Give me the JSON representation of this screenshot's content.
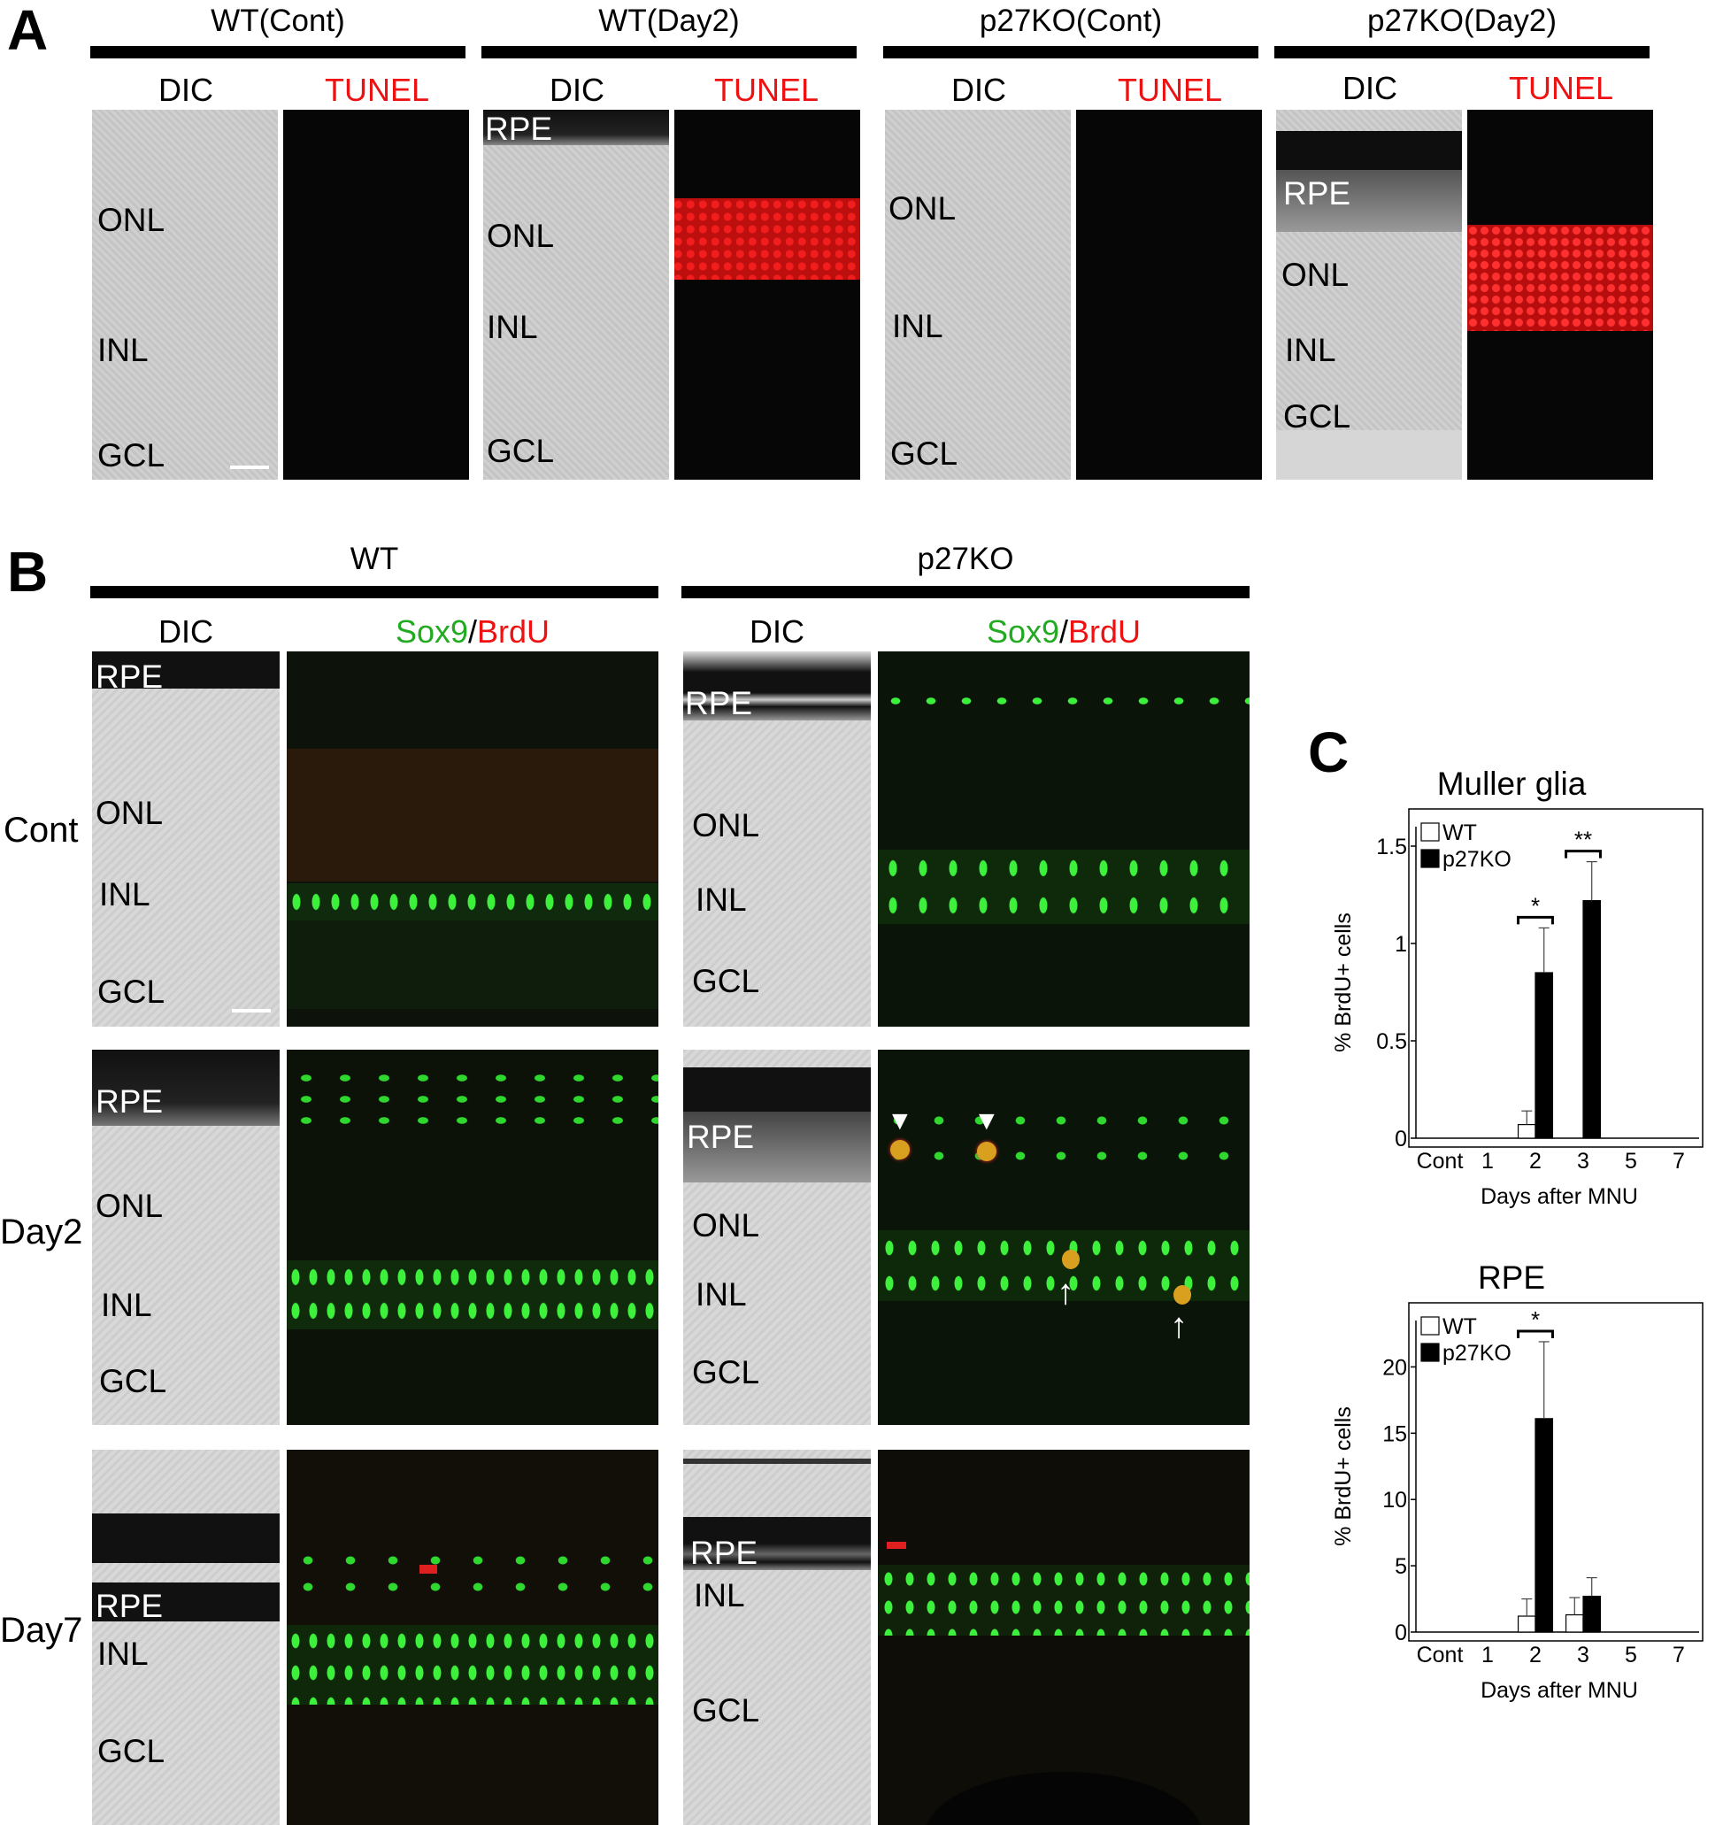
{
  "panel_a": {
    "letter": "A",
    "groups": [
      {
        "title": "WT(Cont)",
        "dic": "DIC",
        "fluor": "TUNEL",
        "layers": [
          "ONL",
          "INL",
          "GCL"
        ]
      },
      {
        "title": "WT(Day2)",
        "dic": "DIC",
        "fluor": "TUNEL",
        "layers": [
          "RPE",
          "ONL",
          "INL",
          "GCL"
        ]
      },
      {
        "title": "p27KO(Cont)",
        "dic": "DIC",
        "fluor": "TUNEL",
        "layers": [
          "ONL",
          "INL",
          "GCL"
        ]
      },
      {
        "title": "p27KO(Day2)",
        "dic": "DIC",
        "fluor": "TUNEL",
        "layers": [
          "RPE",
          "ONL",
          "INL",
          "GCL"
        ]
      }
    ]
  },
  "panel_b": {
    "letter": "B",
    "wt_title": "WT",
    "ko_title": "p27KO",
    "dic": "DIC",
    "sox9": "Sox9",
    "slash": "/",
    "brdu": "BrdU",
    "rows": [
      {
        "label": "Cont",
        "wt_layers": [
          "RPE",
          "ONL",
          "INL",
          "GCL"
        ],
        "ko_layers": [
          "RPE",
          "ONL",
          "INL",
          "GCL"
        ]
      },
      {
        "label": "Day2",
        "wt_layers": [
          "RPE",
          "ONL",
          "INL",
          "GCL"
        ],
        "ko_layers": [
          "RPE",
          "ONL",
          "INL",
          "GCL"
        ]
      },
      {
        "label": "Day7",
        "wt_layers": [
          "RPE",
          "INL",
          "GCL"
        ],
        "ko_layers": [
          "RPE",
          "INL",
          "GCL"
        ]
      }
    ]
  },
  "panel_c": {
    "letter": "C"
  },
  "chart_data": [
    {
      "type": "bar",
      "title": "Muller glia",
      "xlabel": "Days after MNU",
      "ylabel": "% BrdU+ cells",
      "categories": [
        "Cont",
        "1",
        "2",
        "3",
        "5",
        "7"
      ],
      "ylim": [
        0,
        1.6
      ],
      "yticks": [
        "0",
        "0.5",
        "1",
        "1.5"
      ],
      "series": [
        {
          "name": "WT",
          "color": "#ffffff",
          "values": [
            0,
            0,
            0.07,
            0,
            0,
            0
          ],
          "errors": [
            0,
            0,
            0.07,
            0,
            0,
            0
          ]
        },
        {
          "name": "p27KO",
          "color": "#000000",
          "values": [
            0,
            0,
            0.85,
            1.22,
            0,
            0
          ],
          "errors": [
            0,
            0,
            0.23,
            0.2,
            0,
            0
          ]
        }
      ],
      "significance": [
        {
          "category": "2",
          "label": "*"
        },
        {
          "category": "3",
          "label": "**"
        }
      ],
      "legend": "top-left"
    },
    {
      "type": "bar",
      "title": "RPE",
      "xlabel": "Days after MNU",
      "ylabel": "% BrdU+ cells",
      "categories": [
        "Cont",
        "1",
        "2",
        "3",
        "5",
        "7"
      ],
      "ylim": [
        0,
        23.5
      ],
      "yticks": [
        "0",
        "5",
        "10",
        "15",
        "20"
      ],
      "series": [
        {
          "name": "WT",
          "color": "#ffffff",
          "values": [
            0,
            0,
            1.2,
            1.3,
            0,
            0
          ],
          "errors": [
            0,
            0,
            1.3,
            1.3,
            0,
            0
          ]
        },
        {
          "name": "p27KO",
          "color": "#000000",
          "values": [
            0,
            0,
            16.1,
            2.7,
            0,
            0
          ],
          "errors": [
            0,
            0,
            5.8,
            1.4,
            0,
            0
          ]
        }
      ],
      "significance": [
        {
          "category": "2",
          "label": "*"
        }
      ],
      "legend": "top-left"
    }
  ]
}
